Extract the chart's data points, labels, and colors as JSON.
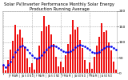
{
  "title": "Solar PV/Inverter Performance Monthly Solar Energy Production Running Average",
  "bar_values": [
    28,
    8,
    42,
    75,
    105,
    155,
    125,
    140,
    115,
    85,
    48,
    18,
    32,
    12,
    48,
    90,
    135,
    185,
    150,
    155,
    125,
    95,
    52,
    22,
    38,
    18,
    58,
    95,
    125,
    170,
    140,
    148,
    108,
    82,
    42,
    15,
    35,
    15,
    52,
    88,
    118,
    160,
    132,
    138,
    98,
    72,
    38,
    12
  ],
  "running_avg": [
    28,
    18,
    26,
    38,
    52,
    69,
    77,
    85,
    88,
    84,
    75,
    65,
    57,
    50,
    48,
    51,
    57,
    67,
    76,
    84,
    88,
    89,
    86,
    81,
    76,
    70,
    67,
    67,
    70,
    77,
    83,
    89,
    91,
    90,
    86,
    80,
    75,
    69,
    65,
    66,
    69,
    75,
    80,
    85,
    87,
    86,
    82,
    76
  ],
  "bar_color": "#ee1111",
  "avg_color": "#0000ee",
  "background_color": "#ffffff",
  "plot_bg_color": "#ffffff",
  "grid_color": "#aaaaaa",
  "text_color": "#000000",
  "ylim": [
    0,
    200
  ],
  "ytick_values": [
    0,
    50,
    100,
    150,
    200
  ],
  "ytick_labels": [
    "0",
    "50",
    "100",
    "150",
    "200"
  ],
  "title_fontsize": 3.8,
  "tick_fontsize": 3.2,
  "num_bars": 48
}
